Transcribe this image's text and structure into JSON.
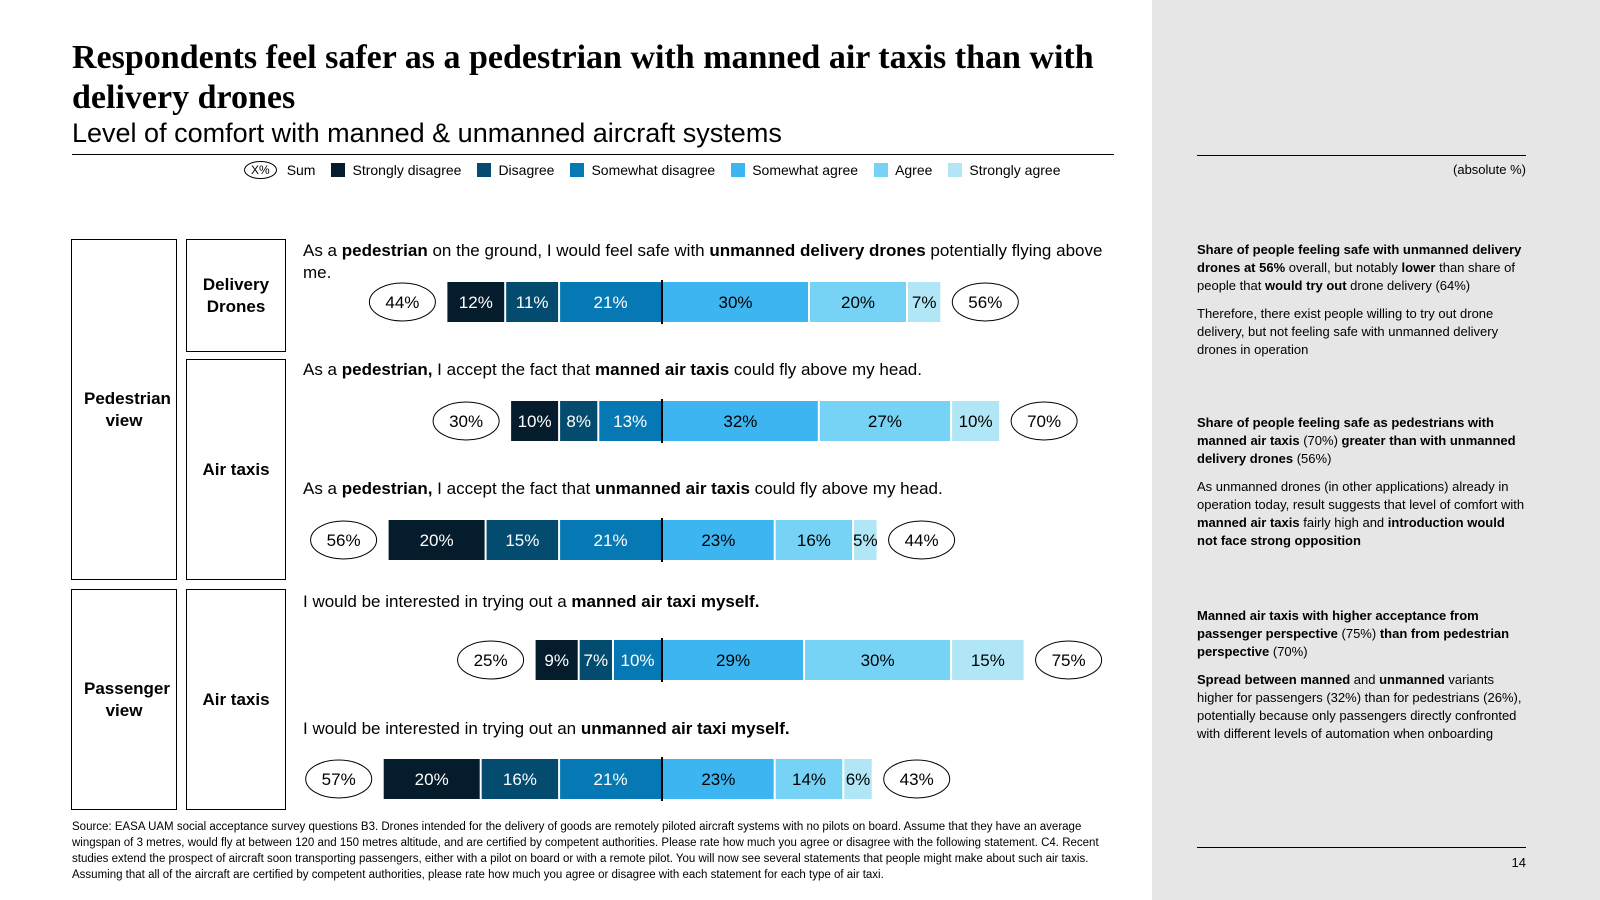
{
  "title": "Respondents feel safer as a pedestrian with manned air taxis than with delivery drones",
  "subtitle": "Level of comfort with manned & unmanned aircraft systems",
  "legend": {
    "sum_symbol": "X%",
    "sum_label": "Sum",
    "items": [
      {
        "label": "Strongly disagree",
        "color": "#051c2c"
      },
      {
        "label": "Disagree",
        "color": "#034b6f"
      },
      {
        "label": "Somewhat disagree",
        "color": "#0679b4"
      },
      {
        "label": "Somewhat agree",
        "color": "#3db5f0"
      },
      {
        "label": "Agree",
        "color": "#76d3f5"
      },
      {
        "label": "Strongly agree",
        "color": "#b0e6f6"
      }
    ]
  },
  "views": {
    "pedestrian": "Pedestrian view",
    "passenger": "Passenger view",
    "delivery_drones": "Delivery Drones",
    "air_taxis_1": "Air taxis",
    "air_taxis_2": "Air taxis"
  },
  "statements": {
    "s1": {
      "a": "As a ",
      "b": "pedestrian",
      "c": " on the ground, I would feel safe with ",
      "d": "unmanned delivery drones",
      "e": " potentially flying above me."
    },
    "s2": {
      "a": "As a ",
      "b": "pedestrian,",
      "c": " I accept the fact that ",
      "d": "manned air taxis",
      "e": " could fly above my head."
    },
    "s3": {
      "a": "As a ",
      "b": "pedestrian,",
      "c": " I accept the fact that ",
      "d": "unmanned air taxis",
      "e": " could fly above my head."
    },
    "s4": {
      "a": "I would be interested in trying out a ",
      "b": "manned air taxi myself."
    },
    "s5": {
      "a": "I would be interested in trying out an ",
      "b": "unmanned air taxi myself."
    }
  },
  "chart_data": {
    "type": "bar",
    "subtype": "diverging-stacked-horizontal",
    "categories": [
      "Strongly disagree",
      "Disagree",
      "Somewhat disagree",
      "Somewhat agree",
      "Agree",
      "Strongly agree"
    ],
    "unit": "absolute %",
    "rows": [
      {
        "statement": "Pedestrian - unmanned delivery drones",
        "values": [
          12,
          11,
          21,
          30,
          20,
          7
        ],
        "sum_disagree": "44%",
        "sum_agree": "56%"
      },
      {
        "statement": "Pedestrian - manned air taxis",
        "values": [
          10,
          8,
          13,
          32,
          27,
          10
        ],
        "sum_disagree": "30%",
        "sum_agree": "70%"
      },
      {
        "statement": "Pedestrian - unmanned air taxis",
        "values": [
          20,
          15,
          21,
          23,
          16,
          5
        ],
        "sum_disagree": "56%",
        "sum_agree": "44%"
      },
      {
        "statement": "Passenger - manned air taxi",
        "values": [
          9,
          7,
          10,
          29,
          30,
          15
        ],
        "sum_disagree": "25%",
        "sum_agree": "75%"
      },
      {
        "statement": "Passenger - unmanned air taxi",
        "values": [
          20,
          16,
          21,
          23,
          14,
          6
        ],
        "sum_disagree": "57%",
        "sum_agree": "43%"
      }
    ]
  },
  "source": "Source: EASA UAM social acceptance survey questions B3. Drones intended for the delivery of goods are remotely piloted aircraft systems with no pilots on board. Assume that they have an average wingspan of 3 metres, would fly at between 120 and 150 metres altitude, and are certified by competent authorities. Please rate how much you agree or disagree with the following statement. C4. Recent studies extend the prospect of aircraft soon transporting passengers, either with a pilot on board or with a remote pilot. You will now see several statements that people might make about such air taxis. Assuming that all of the aircraft are certified by competent authorities, please rate how much you agree or disagree with each statement for each type of air taxi.",
  "abs_label": "(absolute %)",
  "notes": {
    "n1": {
      "a": "Share of people feeling safe with unmanned delivery drones at 56%",
      "b": " overall, but notably ",
      "c": "lower",
      "d": " than share of people that ",
      "e": "would try out",
      "f": " drone delivery (64%)"
    },
    "n2": "Therefore, there exist people willing to try out drone delivery, but not feeling safe with unmanned delivery drones in operation",
    "n3": {
      "a": "Share of people feeling safe as pedestrians with manned air taxis",
      "b": " (70%) ",
      "c": "greater than with unmanned delivery drones",
      "d": " (56%)"
    },
    "n4": {
      "a": "As unmanned drones (in other applications) already in operation today, result suggests that level of comfort with ",
      "b": "manned air taxis",
      "c": " fairly high and ",
      "d": "introduction would not face strong opposition"
    },
    "n5": {
      "a": "Manned air taxis with higher acceptance from passenger perspective",
      "b": " (75%) ",
      "c": "than from pedestrian perspective",
      "d": " (70%)"
    },
    "n6": {
      "a": "Spread between manned",
      "b": " and ",
      "c": "unmanned",
      "d": " variants higher for passengers (32%) than for pedestrians (26%), potentially because only passengers directly confronted with different levels of automation when onboarding"
    }
  },
  "page_number": "14"
}
